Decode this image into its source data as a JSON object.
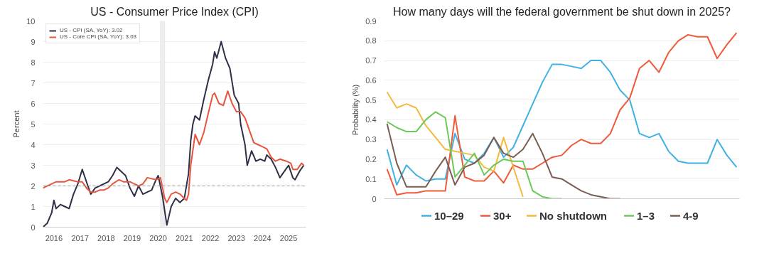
{
  "chart_data": [
    {
      "type": "line",
      "title": "US - Consumer Price Index (CPI)",
      "ylabel": "Percent",
      "xlim": [
        "2015-08",
        "2025-09"
      ],
      "xticks": [
        "2016",
        "2017",
        "2018",
        "2019",
        "2020",
        "2021",
        "2022",
        "2023",
        "2024",
        "2025"
      ],
      "ylim": [
        0,
        10
      ],
      "yticks": [
        0,
        1,
        2,
        3,
        4,
        5,
        6,
        7,
        8,
        9,
        10
      ],
      "grid": "y",
      "legend": "top left",
      "bands": [
        {
          "axis": "x",
          "from": "2020-02",
          "to": "2020-04",
          "color": "#eeeeee"
        }
      ],
      "ref_lines": [
        {
          "axis": "y",
          "value": 2,
          "color": "#999999",
          "line_style": "dashed"
        }
      ],
      "series": [
        {
          "name": "US - CPI (SA, YoY): 3.02",
          "color": "#2d3047",
          "x": [
            "2015-08",
            "2015-10",
            "2015-12",
            "2016-01",
            "2016-02",
            "2016-04",
            "2016-06",
            "2016-08",
            "2016-10",
            "2016-12",
            "2017-02",
            "2017-04",
            "2017-06",
            "2017-08",
            "2017-10",
            "2017-12",
            "2018-02",
            "2018-04",
            "2018-06",
            "2018-08",
            "2018-10",
            "2018-12",
            "2019-02",
            "2019-04",
            "2019-06",
            "2019-08",
            "2019-10",
            "2019-12",
            "2020-01",
            "2020-03",
            "2020-05",
            "2020-07",
            "2020-09",
            "2020-11",
            "2021-01",
            "2021-03",
            "2021-04",
            "2021-05",
            "2021-06",
            "2021-08",
            "2021-10",
            "2021-12",
            "2022-02",
            "2022-03",
            "2022-04",
            "2022-06",
            "2022-08",
            "2022-10",
            "2022-12",
            "2023-02",
            "2023-03",
            "2023-05",
            "2023-06",
            "2023-08",
            "2023-10",
            "2023-12",
            "2024-02",
            "2024-03",
            "2024-05",
            "2024-07",
            "2024-09",
            "2024-11",
            "2025-01",
            "2025-03",
            "2025-04",
            "2025-06",
            "2025-08"
          ],
          "values": [
            0.0,
            0.2,
            0.7,
            1.3,
            0.9,
            1.1,
            1.0,
            0.9,
            1.6,
            2.1,
            2.8,
            2.2,
            1.6,
            1.9,
            2.0,
            2.1,
            2.2,
            2.5,
            2.9,
            2.7,
            2.5,
            1.9,
            1.5,
            2.0,
            1.6,
            1.7,
            1.8,
            2.3,
            2.5,
            1.5,
            0.1,
            1.0,
            1.4,
            1.2,
            1.4,
            2.6,
            4.2,
            5.0,
            5.4,
            5.2,
            6.2,
            7.1,
            7.9,
            8.5,
            8.2,
            9.0,
            8.2,
            7.7,
            6.4,
            6.0,
            5.0,
            4.0,
            3.0,
            3.7,
            3.2,
            3.3,
            3.2,
            3.5,
            3.3,
            2.9,
            2.4,
            2.7,
            3.0,
            2.4,
            2.3,
            2.7,
            3.0
          ]
        },
        {
          "name": "US - Core CPI (SA, YoY): 3.03",
          "color": "#e8553e",
          "x": [
            "2015-08",
            "2015-12",
            "2016-02",
            "2016-06",
            "2016-08",
            "2016-12",
            "2017-02",
            "2017-04",
            "2017-06",
            "2017-08",
            "2017-10",
            "2017-12",
            "2018-02",
            "2018-04",
            "2018-07",
            "2018-09",
            "2018-12",
            "2019-02",
            "2019-04",
            "2019-06",
            "2019-08",
            "2019-12",
            "2020-02",
            "2020-04",
            "2020-05",
            "2020-07",
            "2020-09",
            "2020-11",
            "2021-01",
            "2021-02",
            "2021-03",
            "2021-04",
            "2021-06",
            "2021-08",
            "2021-10",
            "2021-12",
            "2022-02",
            "2022-03",
            "2022-05",
            "2022-07",
            "2022-09",
            "2022-11",
            "2023-01",
            "2023-03",
            "2023-05",
            "2023-07",
            "2023-09",
            "2023-11",
            "2024-01",
            "2024-03",
            "2024-05",
            "2024-07",
            "2024-09",
            "2024-12",
            "2025-02",
            "2025-03",
            "2025-05",
            "2025-07",
            "2025-08"
          ],
          "values": [
            1.9,
            2.1,
            2.2,
            2.2,
            2.3,
            2.2,
            2.2,
            1.9,
            1.7,
            1.7,
            1.8,
            1.8,
            1.9,
            2.1,
            2.3,
            2.2,
            2.2,
            2.1,
            2.0,
            2.1,
            2.4,
            2.3,
            2.4,
            1.4,
            1.2,
            1.6,
            1.7,
            1.6,
            1.4,
            1.3,
            1.6,
            3.0,
            4.5,
            4.0,
            4.6,
            5.5,
            6.4,
            6.5,
            6.0,
            5.9,
            6.6,
            6.0,
            5.6,
            5.6,
            5.3,
            4.7,
            4.1,
            4.0,
            3.9,
            3.8,
            3.4,
            3.2,
            3.3,
            3.2,
            3.1,
            2.8,
            2.8,
            3.1,
            3.0
          ]
        }
      ]
    },
    {
      "type": "line",
      "title": "How many days will the federal government be shut down in 2025?",
      "ylabel": "Probability (%)",
      "categories": [
        null,
        null,
        null,
        null,
        null,
        null,
        null,
        null,
        null,
        null,
        null,
        null,
        null,
        null,
        null,
        null,
        null,
        null,
        null,
        null,
        null,
        null,
        null,
        null,
        null,
        null,
        null,
        null,
        null,
        null,
        null,
        null,
        null,
        null,
        null,
        null,
        null
      ],
      "ylim": [
        0,
        0.9
      ],
      "yticks": [
        0,
        0.1,
        0.2,
        0.3,
        0.4,
        0.5,
        0.6,
        0.7,
        0.8,
        0.9
      ],
      "grid": "y",
      "legend": "bottom",
      "series": [
        {
          "name": "10–29",
          "color": "#3fb1e3",
          "values": [
            0.25,
            0.07,
            0.17,
            0.12,
            0.09,
            0.1,
            0.1,
            0.33,
            0.2,
            0.18,
            0.23,
            0.31,
            0.21,
            0.26,
            0.37,
            0.48,
            0.59,
            0.68,
            0.68,
            0.67,
            0.66,
            0.7,
            0.7,
            0.64,
            0.55,
            0.5,
            0.33,
            0.31,
            0.33,
            0.24,
            0.19,
            0.18,
            0.18,
            0.18,
            0.3,
            0.22,
            0.16
          ]
        },
        {
          "name": "30+",
          "color": "#ef5a3a",
          "values": [
            0.15,
            0.02,
            0.03,
            0.03,
            0.04,
            0.04,
            0.04,
            0.42,
            0.11,
            0.09,
            0.09,
            0.14,
            0.08,
            0.17,
            0.15,
            0.15,
            0.18,
            0.21,
            0.22,
            0.27,
            0.3,
            0.28,
            0.28,
            0.33,
            0.45,
            0.51,
            0.66,
            0.7,
            0.64,
            0.74,
            0.8,
            0.83,
            0.82,
            0.82,
            0.71,
            0.78,
            0.84
          ]
        },
        {
          "name": "No shutdown",
          "color": "#f5b942",
          "values": [
            0.54,
            0.46,
            0.48,
            0.46,
            0.37,
            0.31,
            0.25,
            0.24,
            0.23,
            0.22,
            0.16,
            0.14,
            0.31,
            0.16,
            0.01,
            null,
            null,
            null,
            null,
            null,
            null,
            null,
            null,
            null,
            null,
            null,
            null,
            null,
            null,
            null,
            null,
            null,
            null,
            null,
            null,
            null,
            null
          ]
        },
        {
          "name": "1–3",
          "color": "#6cc858",
          "values": [
            0.39,
            0.36,
            0.34,
            0.34,
            0.4,
            0.44,
            0.41,
            0.11,
            0.17,
            0.23,
            0.12,
            0.17,
            0.2,
            0.19,
            0.19,
            0.04,
            0.01,
            0,
            0,
            null,
            null,
            null,
            null,
            null,
            null,
            null,
            null,
            null,
            null,
            null,
            null,
            null,
            null,
            null,
            null,
            null,
            null
          ]
        },
        {
          "name": "4-9",
          "color": "#7a5c52",
          "values": [
            0.38,
            0.18,
            0.06,
            0.06,
            0.06,
            0.14,
            0.21,
            0.07,
            0.16,
            0.18,
            0.22,
            0.31,
            0.23,
            0.21,
            0.25,
            0.33,
            0.23,
            0.11,
            0.1,
            0.07,
            0.04,
            0.02,
            0.01,
            0,
            0,
            null,
            null,
            null,
            null,
            null,
            null,
            null,
            null,
            null,
            null,
            null,
            null
          ]
        }
      ]
    }
  ]
}
